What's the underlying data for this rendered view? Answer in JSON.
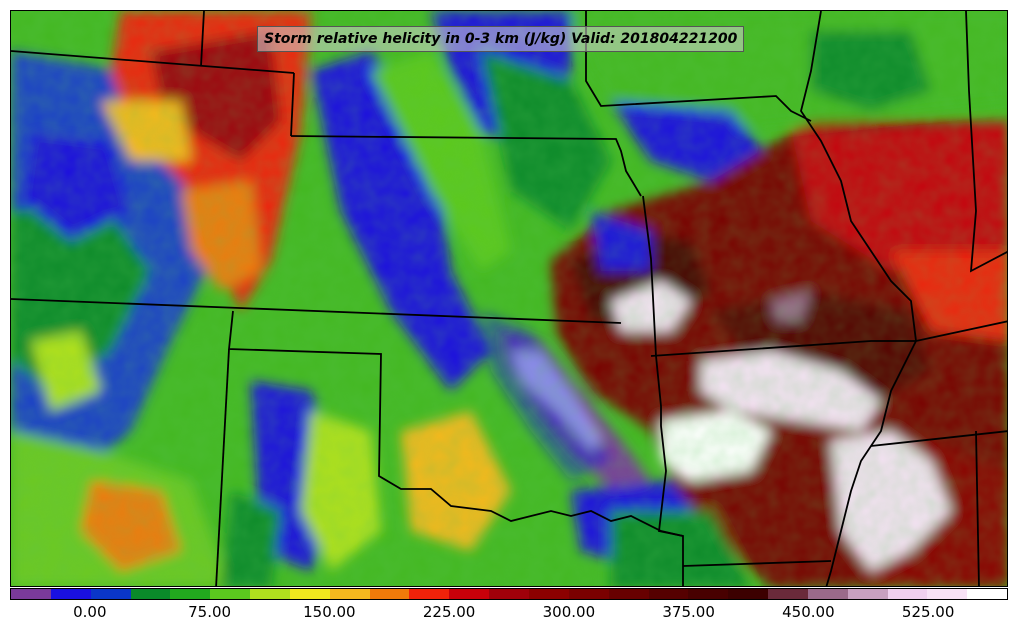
{
  "title": "Storm relative helicity in 0-3 km (J/kg) Valid: 201804221200",
  "colorbar": {
    "min": -50,
    "max": 575,
    "step": 25,
    "colors": [
      "#7a3a9a",
      "#1a10e0",
      "#0a36c8",
      "#0a8a2a",
      "#22a81e",
      "#5bc81e",
      "#b0e01e",
      "#f0e81e",
      "#f5b81e",
      "#f07a0a",
      "#f0220a",
      "#c8000a",
      "#a0000a",
      "#8c0000",
      "#7a0000",
      "#680000",
      "#560000",
      "#480000",
      "#3c0000",
      "#6a2a3a",
      "#9a6a8a",
      "#c8a0c0",
      "#f0d0ef",
      "#f8e2f6",
      "#ffffff"
    ],
    "tick_labels": [
      "0.00",
      "75.00",
      "150.00",
      "225.00",
      "300.00",
      "375.00",
      "450.00",
      "525.00"
    ],
    "tick_values": [
      0,
      75,
      150,
      225,
      300,
      375,
      450,
      525
    ]
  }
}
